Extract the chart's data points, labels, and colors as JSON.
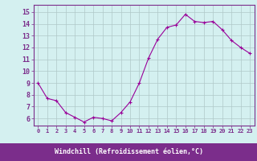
{
  "x": [
    0,
    1,
    2,
    3,
    4,
    5,
    6,
    7,
    8,
    9,
    10,
    11,
    12,
    13,
    14,
    15,
    16,
    17,
    18,
    19,
    20,
    21,
    22,
    23
  ],
  "y": [
    9.0,
    7.7,
    7.5,
    6.5,
    6.1,
    5.7,
    6.1,
    6.0,
    5.8,
    6.5,
    7.4,
    9.0,
    11.1,
    12.7,
    13.7,
    13.9,
    14.8,
    14.2,
    14.1,
    14.2,
    13.5,
    12.6,
    12.0,
    11.5
  ],
  "line_color": "#990099",
  "marker": "+",
  "marker_size": 3,
  "bg_color": "#d4f0f0",
  "grid_color": "#b0c8c8",
  "xlabel": "Windchill (Refroidissement éolien,°C)",
  "xlabel_bg": "#7b2d8b",
  "xlabel_color": "#ffffff",
  "ylabel_ticks": [
    6,
    7,
    8,
    9,
    10,
    11,
    12,
    13,
    14,
    15
  ],
  "ylim": [
    5.4,
    15.6
  ],
  "xlim": [
    -0.5,
    23.5
  ],
  "tick_color": "#7b2d8b",
  "spine_color": "#7b2d8b"
}
